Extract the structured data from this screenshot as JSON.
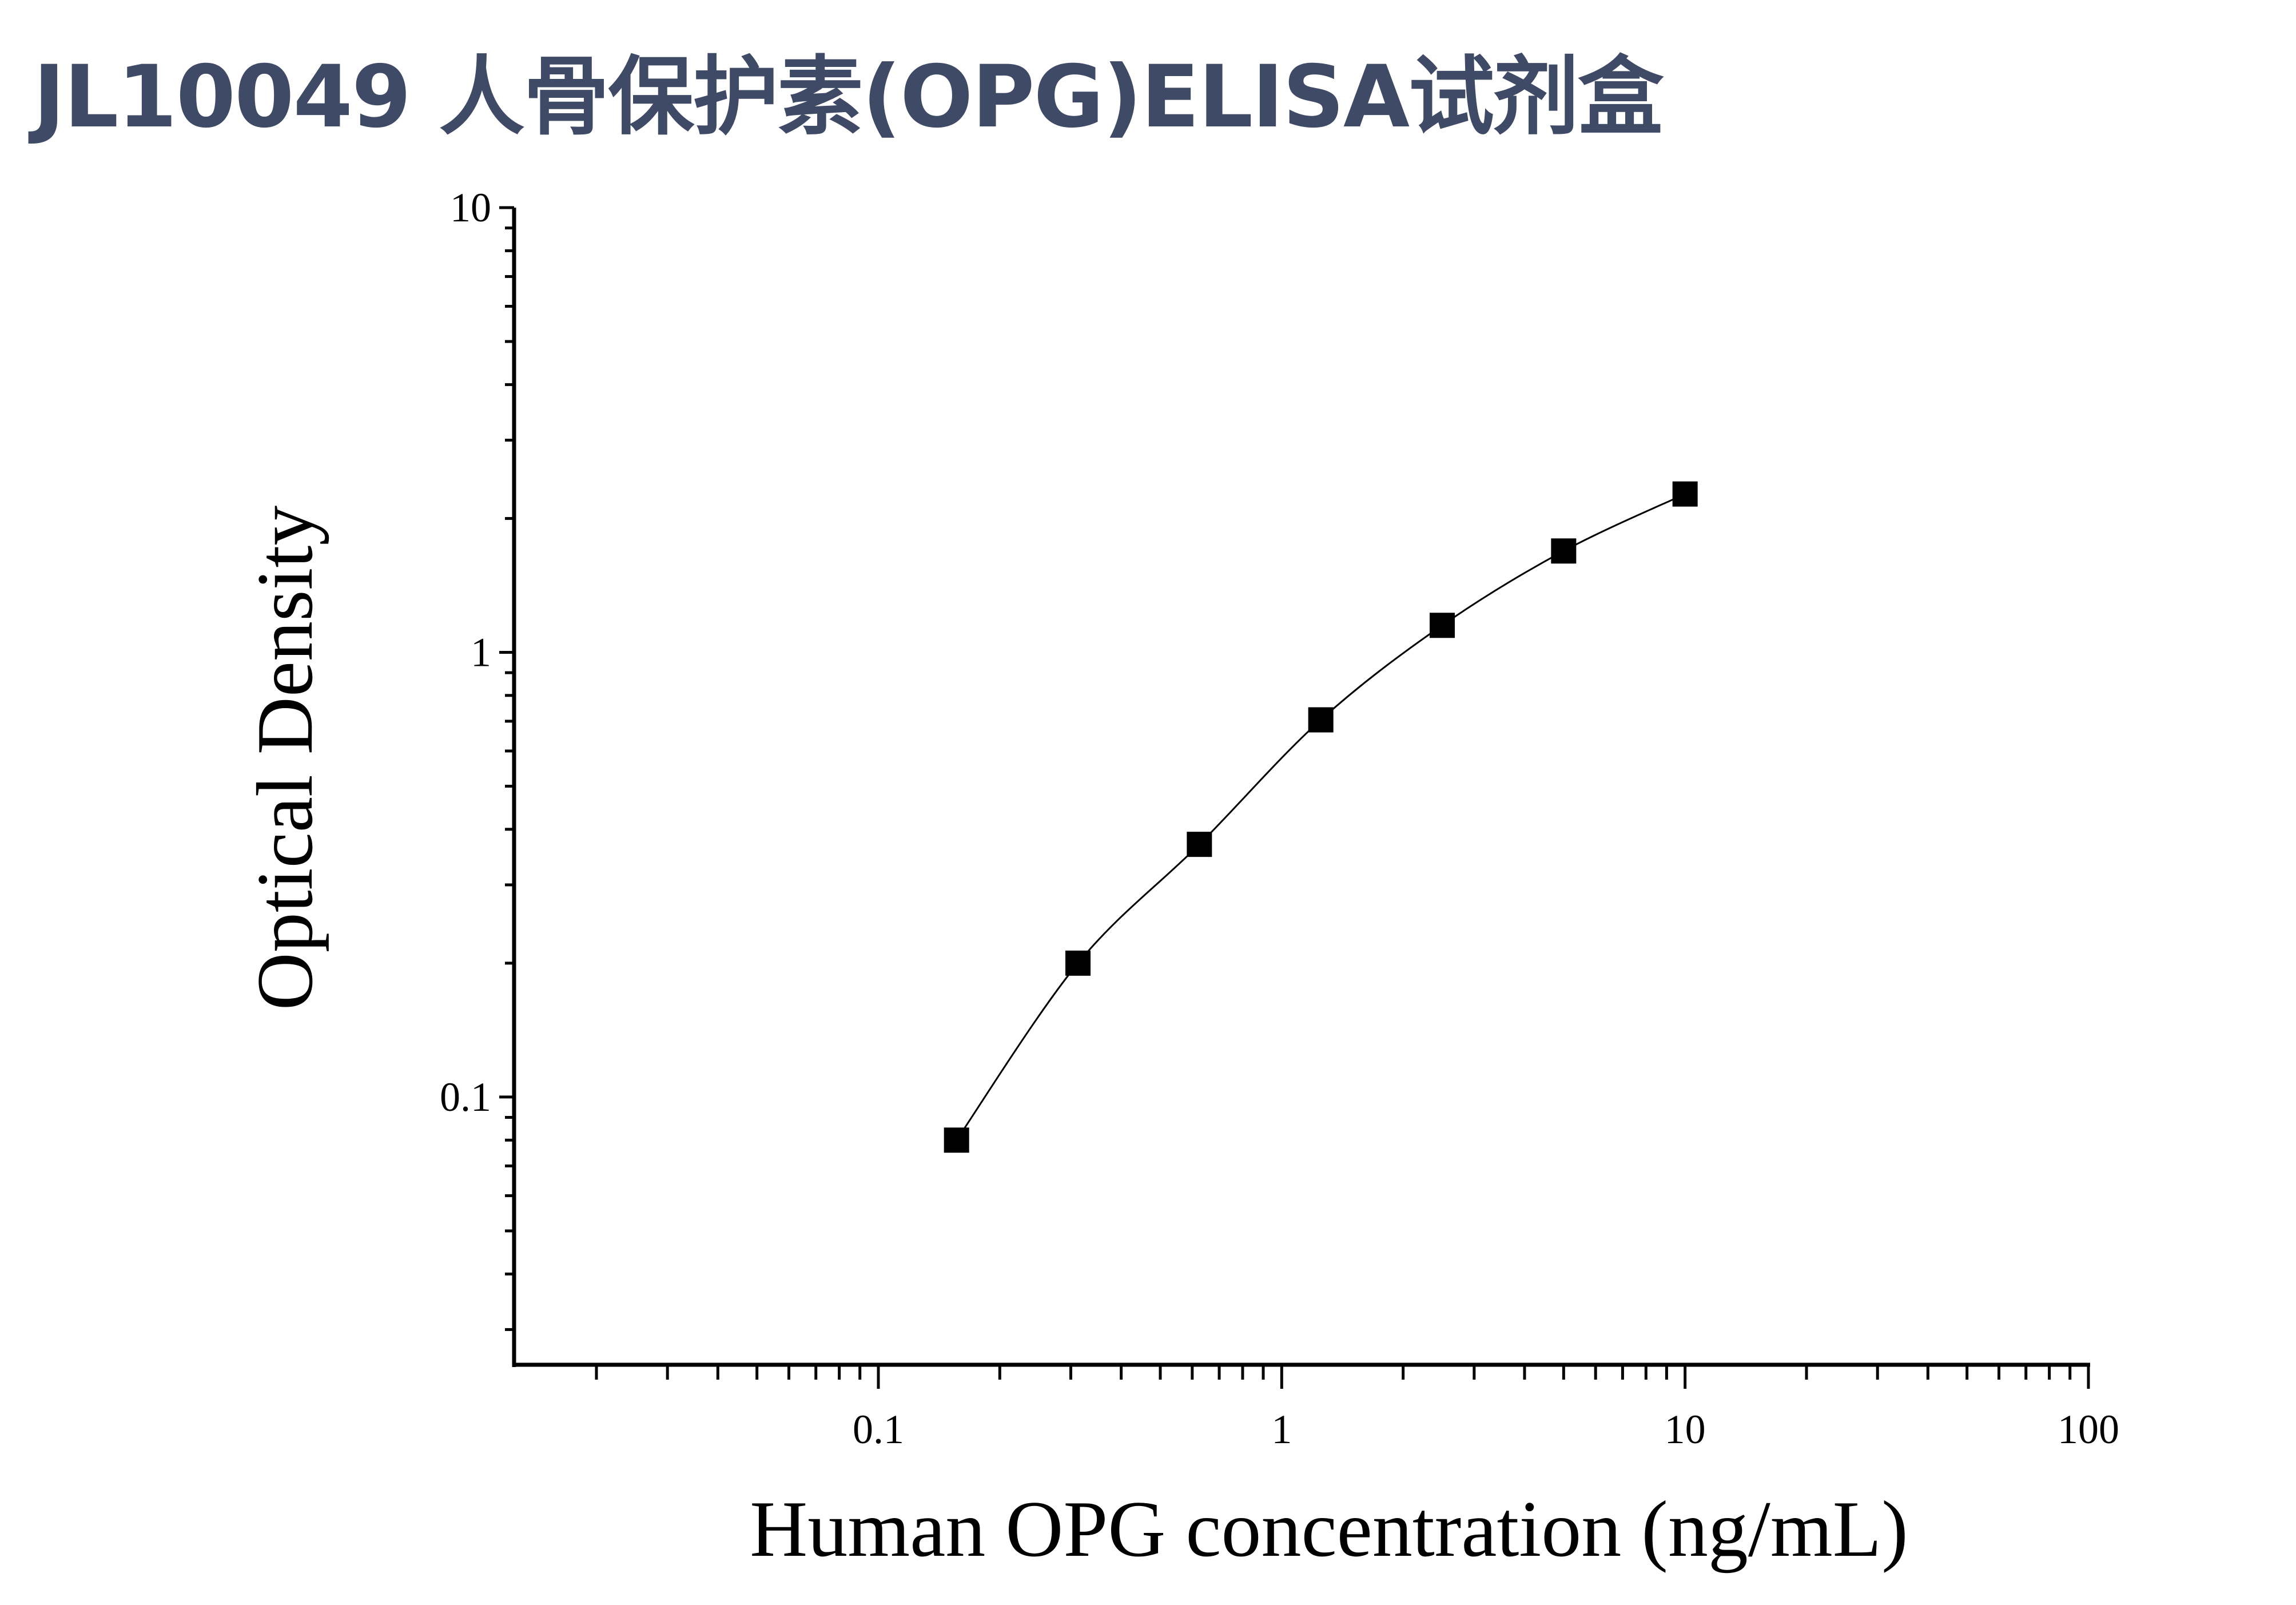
{
  "title": "JL10049 人骨保护素(OPG)ELISA试剂盒",
  "chart_data": {
    "type": "scatter",
    "title": "JL10049 人骨保护素(OPG)ELISA试剂盒",
    "xlabel": "Human OPG concentration (ng/mL)",
    "ylabel": "Optical Density",
    "xscale": "log",
    "yscale": "log",
    "xlim": [
      0.0125,
      100
    ],
    "ylim": [
      0.025,
      10
    ],
    "xticks": [
      {
        "value": 0.1,
        "label": "0.1"
      },
      {
        "value": 1,
        "label": "1"
      },
      {
        "value": 10,
        "label": "10"
      },
      {
        "value": 100,
        "label": "100"
      }
    ],
    "yticks": [
      {
        "value": 0.1,
        "label": "0.1"
      },
      {
        "value": 1,
        "label": "1"
      },
      {
        "value": 10,
        "label": "10"
      }
    ],
    "grid": false,
    "marker": "square",
    "fit_line": true,
    "colors": {
      "marker": "#000000",
      "line": "#000000",
      "title": "#3f4a66"
    },
    "x": [
      0.15625,
      0.3125,
      0.625,
      1.25,
      2.5,
      5,
      10
    ],
    "y": [
      0.08,
      0.2,
      0.37,
      0.705,
      1.15,
      1.69,
      2.27
    ]
  }
}
